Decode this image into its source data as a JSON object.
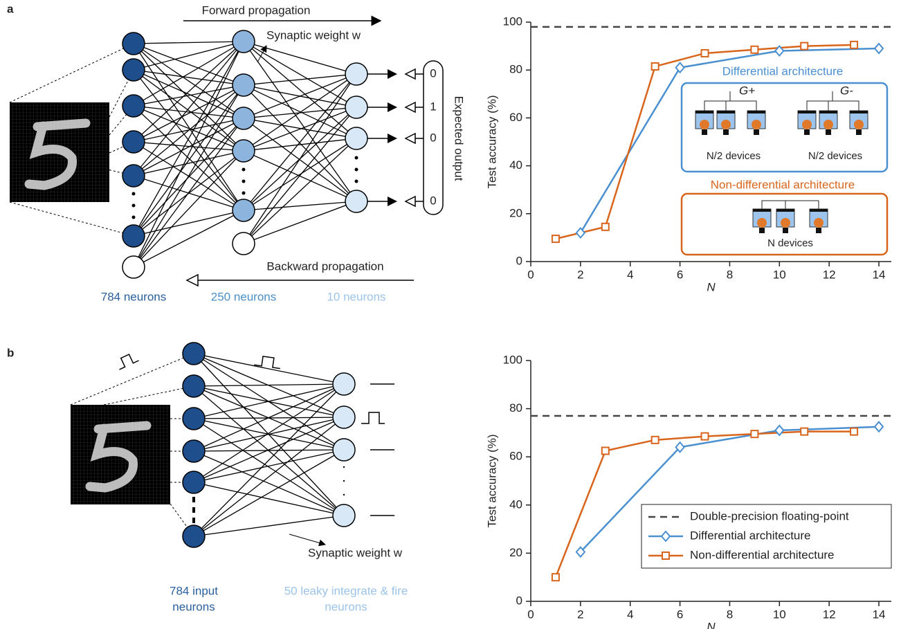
{
  "panels": [
    "a",
    "b"
  ],
  "diagram_a": {
    "forward": "Forward propagation",
    "backward": "Backward propagation",
    "weight": "Synaptic weight w",
    "layer_labels": [
      "784 neurons",
      "250 neurons",
      "10 neurons"
    ],
    "outputs": [
      "0",
      "1",
      "0",
      "0"
    ],
    "output_label": "Expected output"
  },
  "diagram_b": {
    "weight": "Synaptic weight w",
    "layer_labels": [
      [
        "784 input",
        "neurons"
      ],
      [
        "50 leaky integrate & fire",
        "neurons"
      ]
    ]
  },
  "chart_data": [
    {
      "type": "line",
      "xlabel": "N",
      "ylabel": "Test accuracy (%)",
      "xlim": [
        0,
        14.5
      ],
      "xticks": [
        0,
        2,
        4,
        6,
        8,
        10,
        12,
        14
      ],
      "ylim": [
        0,
        100
      ],
      "yticks": [
        0,
        20,
        40,
        60,
        80,
        100
      ],
      "reference": {
        "value": 98,
        "color": "#444444"
      },
      "series": [
        {
          "name": "Differential architecture",
          "color": "#4a8fd0",
          "marker": "diamond",
          "x": [
            2,
            6,
            10,
            14
          ],
          "values": [
            12,
            81,
            88,
            89
          ]
        },
        {
          "name": "Non-differential architecture",
          "color": "#d9651c",
          "marker": "square",
          "x": [
            1,
            3,
            5,
            7,
            9,
            11,
            13
          ],
          "values": [
            9.5,
            14.5,
            81.5,
            87,
            88.5,
            90,
            90.5
          ]
        }
      ],
      "annotations": {
        "plus": "G+",
        "minus": "G-",
        "half_devices": "N/2 devices",
        "full_devices": "N devices"
      }
    },
    {
      "type": "line",
      "xlabel": "N",
      "ylabel": "Test accuracy (%)",
      "xlim": [
        0,
        14.5
      ],
      "xticks": [
        0,
        2,
        4,
        6,
        8,
        10,
        12,
        14
      ],
      "ylim": [
        0,
        100
      ],
      "yticks": [
        0,
        20,
        40,
        60,
        80,
        100
      ],
      "reference": {
        "name": "Double-precision floating-point",
        "value": 77,
        "color": "#444444"
      },
      "series": [
        {
          "name": "Differential architecture",
          "color": "#4a8fd0",
          "marker": "diamond",
          "x": [
            2,
            6,
            10,
            14
          ],
          "values": [
            20.5,
            64,
            71,
            72.5
          ]
        },
        {
          "name": "Non-differential architecture",
          "color": "#d9651c",
          "marker": "square",
          "x": [
            1,
            3,
            5,
            7,
            9,
            11,
            13
          ],
          "values": [
            10,
            62.5,
            67,
            68.5,
            69.5,
            70.5,
            70.5
          ]
        }
      ],
      "legend": "lower right"
    }
  ]
}
